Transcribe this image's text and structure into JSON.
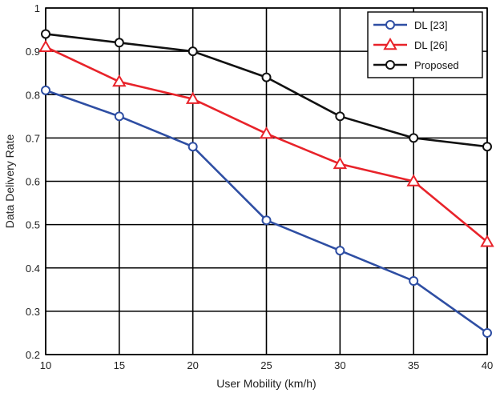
{
  "chart_data": {
    "type": "line",
    "title": "",
    "xlabel": "User Mobility (km/h)",
    "ylabel": "Data Delivery Rate",
    "x": [
      10,
      15,
      20,
      25,
      30,
      35,
      40
    ],
    "xlim": [
      10,
      40
    ],
    "ylim": [
      0.2,
      1.0
    ],
    "xticks": [
      "10",
      "15",
      "20",
      "25",
      "30",
      "35",
      "40"
    ],
    "yticks": [
      "0.2",
      "0.3",
      "0.4",
      "0.5",
      "0.6",
      "0.7",
      "0.8",
      "0.9",
      "1"
    ],
    "ytick_values": [
      0.2,
      0.3,
      0.4,
      0.5,
      0.6,
      0.7,
      0.8,
      0.9,
      1.0
    ],
    "grid": true,
    "legend_position": "top-right",
    "series": [
      {
        "name": "DL [23]",
        "color": "#2e4ea3",
        "marker": "circle",
        "values": [
          0.81,
          0.75,
          0.68,
          0.51,
          0.44,
          0.37,
          0.25
        ]
      },
      {
        "name": "DL [26]",
        "color": "#e8232a",
        "marker": "triangle",
        "values": [
          0.91,
          0.83,
          0.79,
          0.71,
          0.64,
          0.6,
          0.46
        ]
      },
      {
        "name": "Proposed",
        "color": "#111111",
        "marker": "circle",
        "values": [
          0.94,
          0.92,
          0.9,
          0.84,
          0.75,
          0.7,
          0.68
        ]
      }
    ]
  }
}
